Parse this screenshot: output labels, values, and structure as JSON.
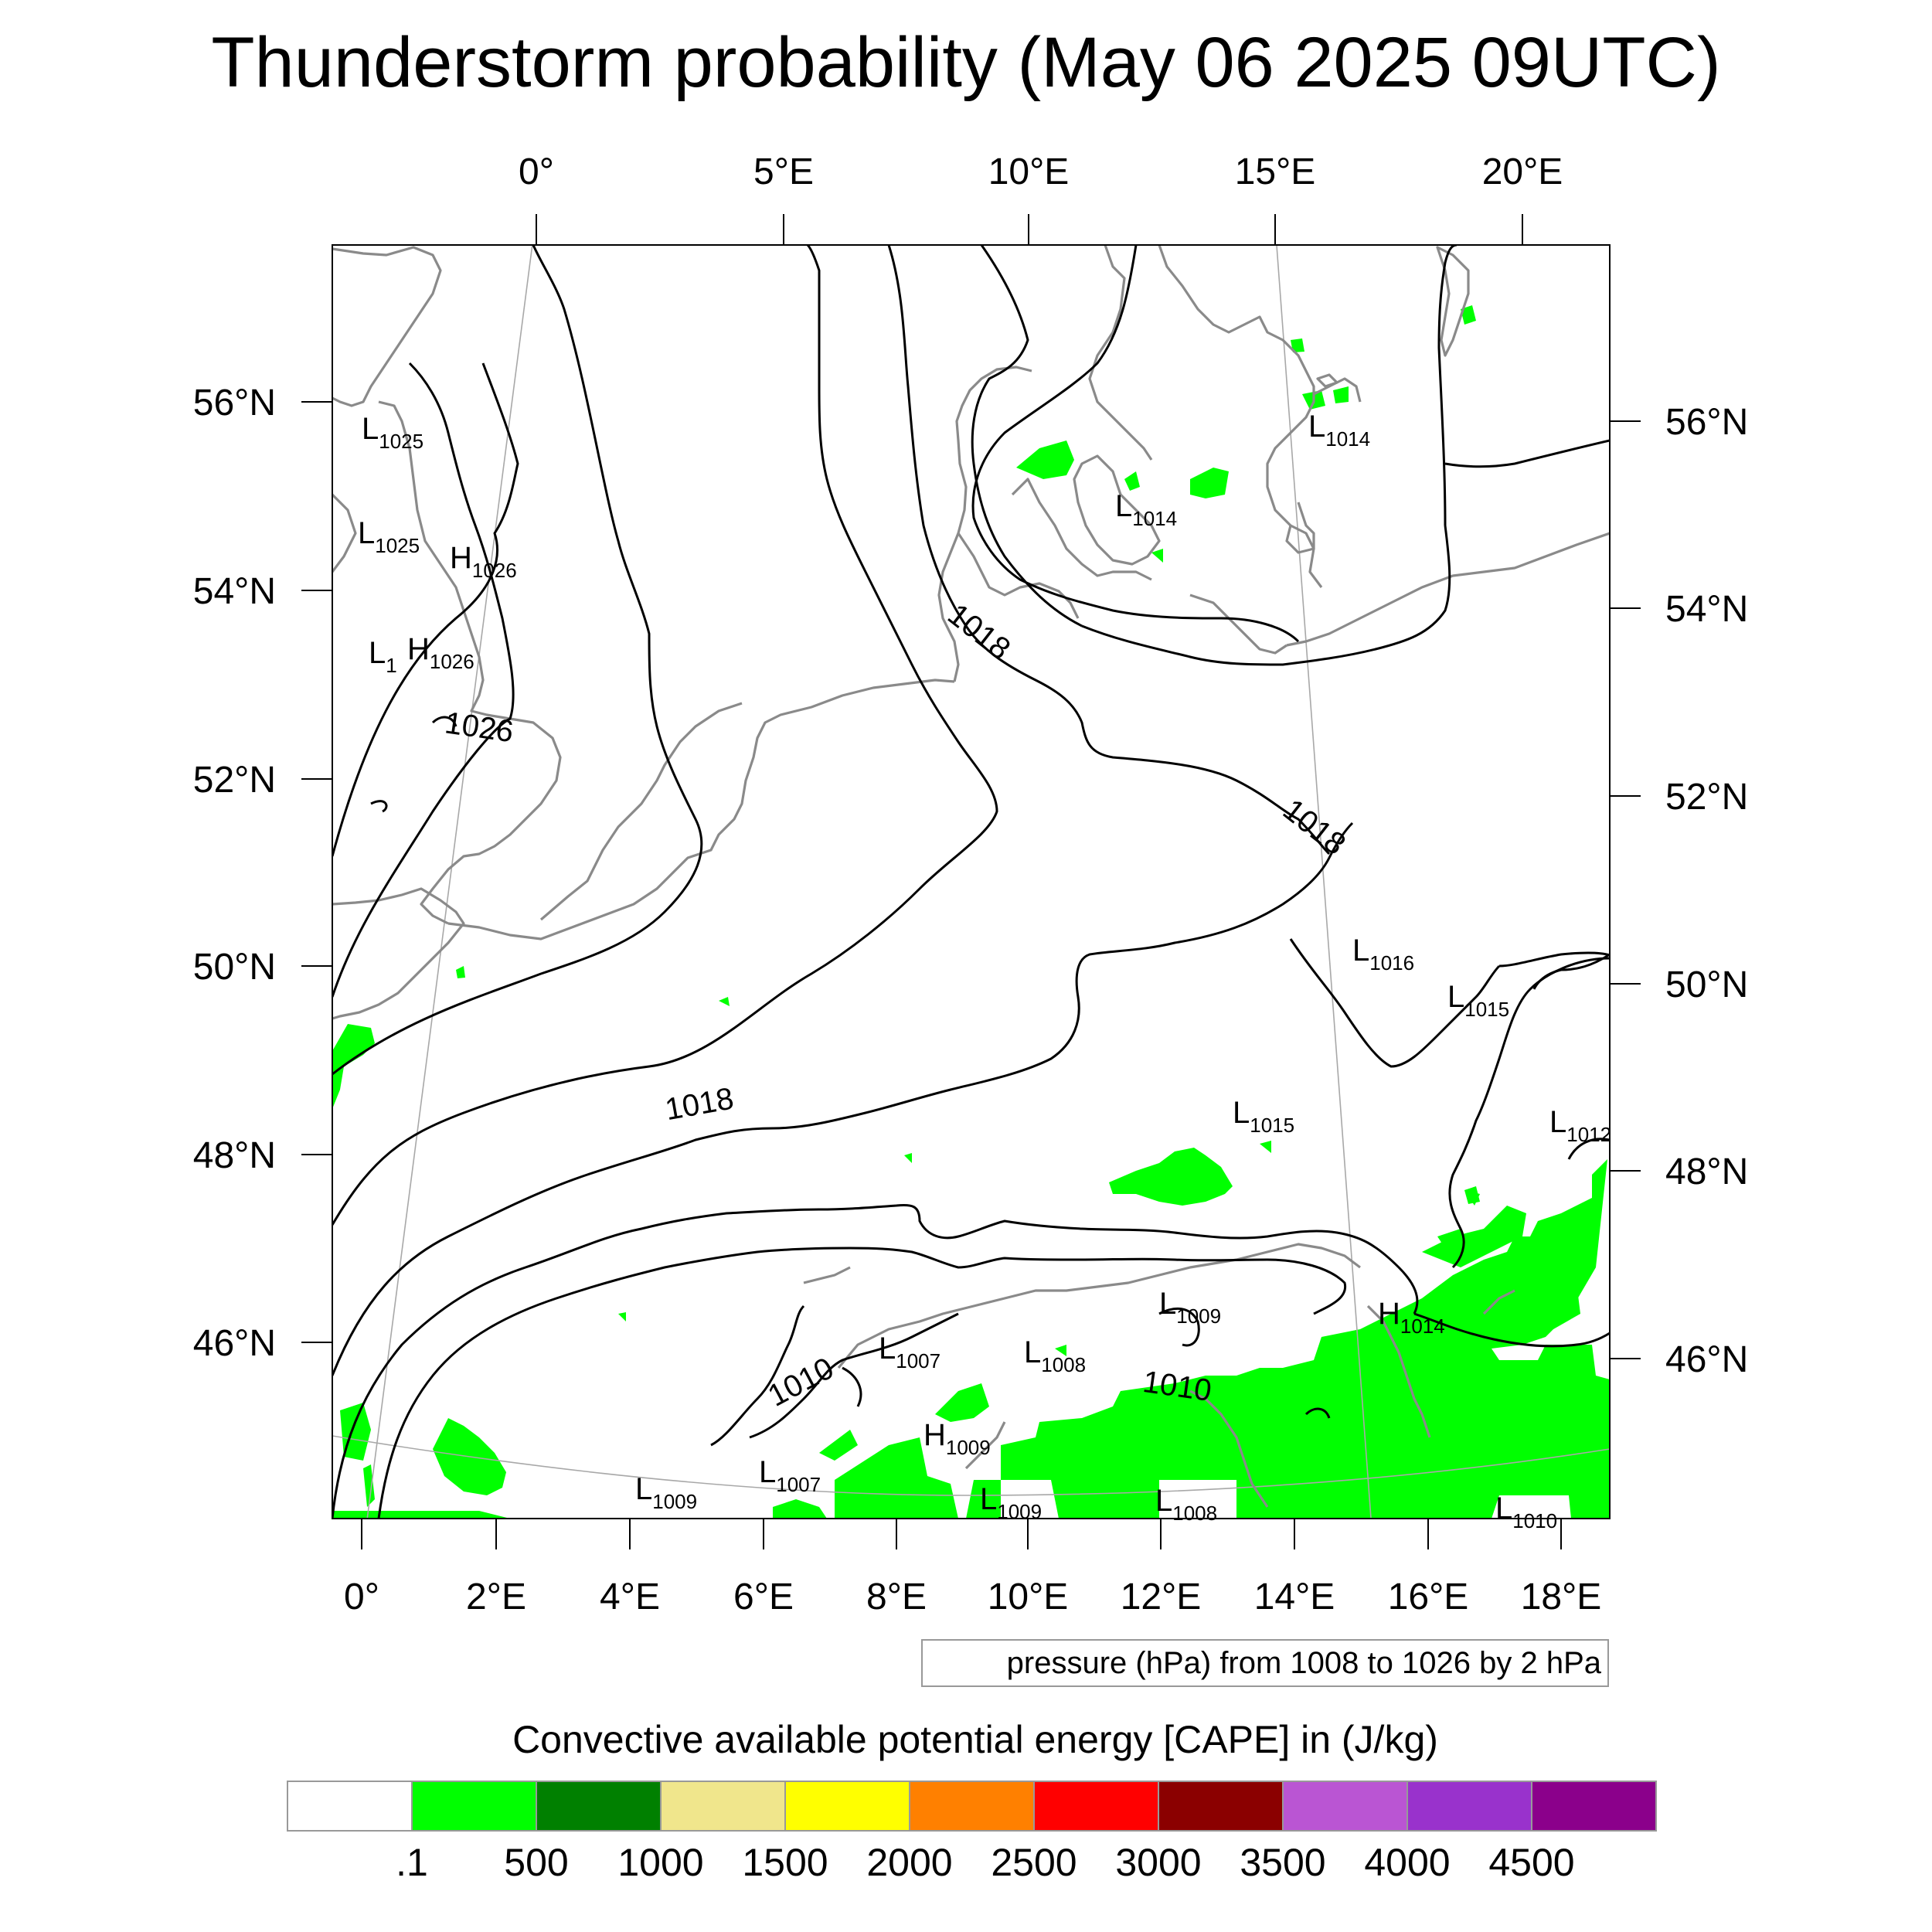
{
  "title": "Thunderstorm probability (May 06 2025 09UTC)",
  "top_axis": [
    "0°",
    "5°E",
    "10°E",
    "15°E",
    "20°E"
  ],
  "bottom_axis": [
    "0°",
    "2°E",
    "4°E",
    "6°E",
    "8°E",
    "10°E",
    "12°E",
    "14°E",
    "16°E",
    "18°E"
  ],
  "left_axis": [
    "56°N",
    "54°N",
    "52°N",
    "50°N",
    "48°N",
    "46°N"
  ],
  "right_axis": [
    "56°N",
    "54°N",
    "52°N",
    "50°N",
    "48°N",
    "46°N"
  ],
  "pressure_note": "pressure (hPa) from 1008 to 1026 by 2 hPa",
  "isobar_labels": [
    "1026",
    "1018",
    "1018",
    "1018",
    "1010",
    "1010"
  ],
  "pressure_centers": [
    {
      "type": "L",
      "value": "1025"
    },
    {
      "type": "L",
      "value": "1025"
    },
    {
      "type": "H",
      "value": "1026"
    },
    {
      "type": "L",
      "value": "1"
    },
    {
      "type": "H",
      "value": "1026"
    },
    {
      "type": "L",
      "value": "1014"
    },
    {
      "type": "L",
      "value": "1014"
    },
    {
      "type": "L",
      "value": "1016"
    },
    {
      "type": "L",
      "value": "1015"
    },
    {
      "type": "L",
      "value": "1015"
    },
    {
      "type": "L",
      "value": "1012"
    },
    {
      "type": "L",
      "value": "1009"
    },
    {
      "type": "H",
      "value": "1014"
    },
    {
      "type": "L",
      "value": "1007"
    },
    {
      "type": "L",
      "value": "1008"
    },
    {
      "type": "H",
      "value": "1009"
    },
    {
      "type": "L",
      "value": "1009"
    },
    {
      "type": "L",
      "value": "1007"
    },
    {
      "type": "L",
      "value": "1009"
    },
    {
      "type": "L",
      "value": "1008"
    },
    {
      "type": "L",
      "value": "1010"
    }
  ],
  "legend": {
    "title": "Convective available potential energy [CAPE] in (J/kg)",
    "colors": [
      "#ffffff",
      "#00ff00",
      "#008000",
      "#f0e68c",
      "#ffff00",
      "#ff8000",
      "#ff0000",
      "#8b0000",
      "#ba55d3",
      "#9932cc",
      "#8b008b"
    ],
    "labels": [
      ".1",
      "500",
      "1000",
      "1500",
      "2000",
      "2500",
      "3000",
      "3500",
      "4000",
      "4500"
    ]
  }
}
